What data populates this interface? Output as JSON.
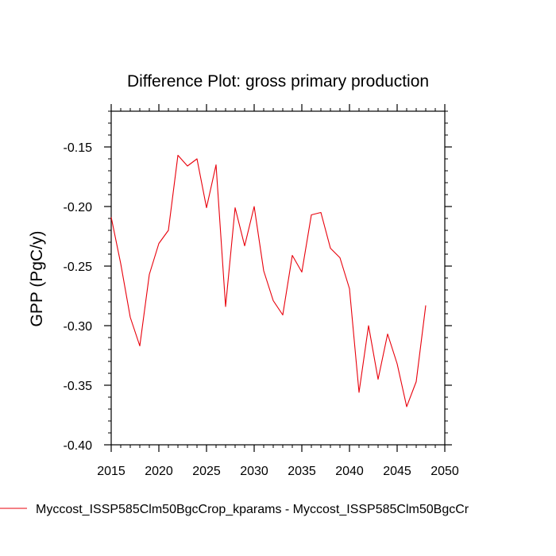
{
  "chart_data": {
    "type": "line",
    "title": "Difference Plot: gross primary production",
    "xlabel": "",
    "ylabel": "GPP  (PgC/y)",
    "xlim": [
      2015,
      2050
    ],
    "ylim": [
      -0.4,
      -0.12
    ],
    "xticks": [
      2015,
      2020,
      2025,
      2030,
      2035,
      2040,
      2045,
      2050
    ],
    "yticks": [
      -0.4,
      -0.35,
      -0.3,
      -0.25,
      -0.2,
      -0.15
    ],
    "ytick_labels": [
      "-0.40",
      "-0.35",
      "-0.30",
      "-0.25",
      "-0.20",
      "-0.15"
    ],
    "grid": false,
    "legend_position": "bottom-left",
    "series": [
      {
        "name": "Myccost_ISSP585Clm50BgcCrop_kparams - Myccost_ISSP585Clm50BgcCr",
        "color": "#e8000b",
        "x": [
          2015,
          2016,
          2017,
          2018,
          2019,
          2020,
          2021,
          2022,
          2023,
          2024,
          2025,
          2026,
          2027,
          2028,
          2029,
          2030,
          2031,
          2032,
          2033,
          2034,
          2035,
          2036,
          2037,
          2038,
          2039,
          2040,
          2041,
          2042,
          2043,
          2044,
          2045,
          2046,
          2047,
          2048
        ],
        "y": [
          -0.209,
          -0.248,
          -0.293,
          -0.317,
          -0.257,
          -0.231,
          -0.22,
          -0.157,
          -0.166,
          -0.16,
          -0.201,
          -0.165,
          -0.284,
          -0.201,
          -0.233,
          -0.2,
          -0.254,
          -0.279,
          -0.291,
          -0.241,
          -0.255,
          -0.207,
          -0.205,
          -0.235,
          -0.243,
          -0.269,
          -0.356,
          -0.3,
          -0.345,
          -0.307,
          -0.332,
          -0.368,
          -0.347,
          -0.283
        ]
      }
    ]
  }
}
